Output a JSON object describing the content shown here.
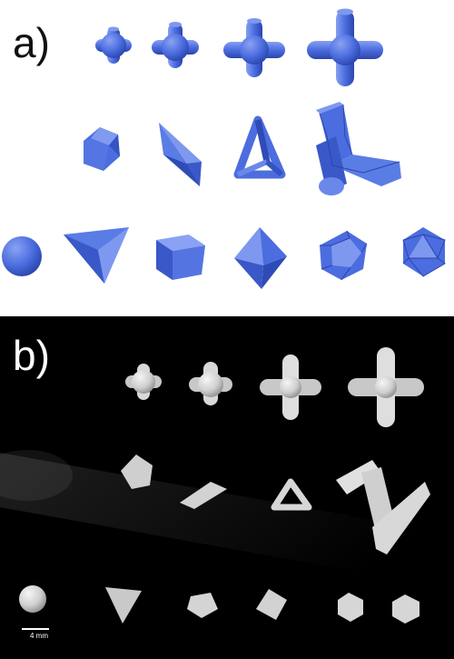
{
  "figure": {
    "panel_a_label": "a)",
    "panel_b_label": "b)",
    "scale_bar_label": "4 mm"
  },
  "colors": {
    "model_blue": "#4a6ee0",
    "model_blue_dark": "#2c47b0",
    "model_blue_light": "#7b95ef",
    "print_white": "#e4e4e4",
    "background_b": "#000000"
  }
}
